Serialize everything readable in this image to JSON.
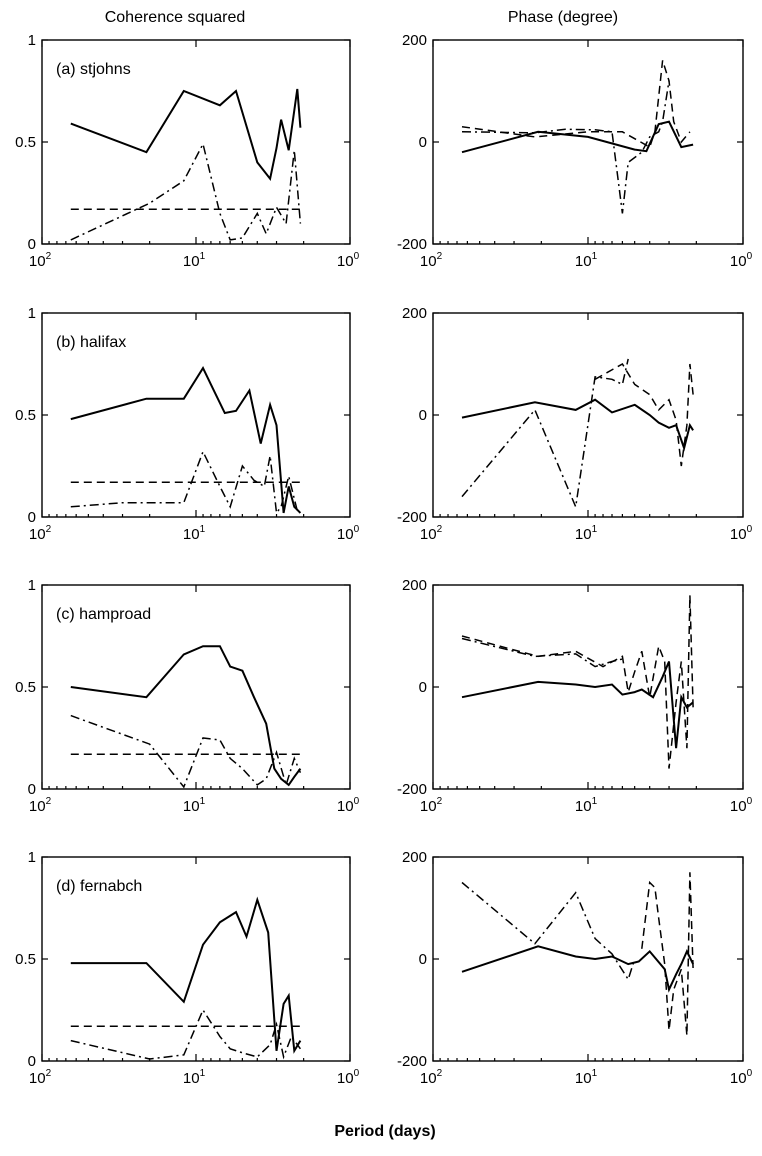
{
  "figure": {
    "left_title": "Coherence squared",
    "right_title": "Phase (degree)",
    "xlabel": "Period (days)"
  },
  "chart_data": [
    {
      "type": "line",
      "id": "a-coh",
      "panel_label": "(a) stjohns",
      "xscale": "log",
      "xlim": [
        100,
        1
      ],
      "ylim": [
        0,
        1
      ],
      "xticks": [
        {
          "base": "10",
          "exp": "2",
          "value": 100
        },
        {
          "base": "10",
          "exp": "1",
          "value": 10
        },
        {
          "base": "10",
          "exp": "0",
          "value": 1
        }
      ],
      "yticks": [
        {
          "value": 0,
          "label": "0"
        },
        {
          "value": 0.5,
          "label": "0.5"
        },
        {
          "value": 1,
          "label": "1"
        }
      ],
      "series": [
        {
          "style": "solid",
          "x": [
            65,
            21,
            12,
            7,
            5.5,
            4,
            3.3,
            3,
            2.8,
            2.5,
            2.2,
            2.1
          ],
          "y": [
            0.59,
            0.45,
            0.75,
            0.68,
            0.75,
            0.4,
            0.32,
            0.47,
            0.61,
            0.46,
            0.76,
            0.57
          ]
        },
        {
          "style": "dashed",
          "x": [
            65,
            2.1
          ],
          "y": [
            0.17,
            0.17
          ]
        },
        {
          "style": "dashdot",
          "x": [
            65,
            20,
            12,
            9,
            7,
            6,
            5,
            4,
            3.5,
            3,
            2.6,
            2.3,
            2.1
          ],
          "y": [
            0.02,
            0.2,
            0.31,
            0.49,
            0.15,
            0.02,
            0.03,
            0.15,
            0.05,
            0.18,
            0.1,
            0.46,
            0.1
          ]
        }
      ]
    },
    {
      "type": "line",
      "id": "a-phase",
      "xscale": "log",
      "xlim": [
        100,
        1
      ],
      "ylim": [
        -200,
        200
      ],
      "xticks": [
        {
          "base": "10",
          "exp": "2",
          "value": 100
        },
        {
          "base": "10",
          "exp": "1",
          "value": 10
        },
        {
          "base": "10",
          "exp": "0",
          "value": 1
        }
      ],
      "yticks": [
        {
          "value": -200,
          "label": "-200"
        },
        {
          "value": 0,
          "label": "0"
        },
        {
          "value": 200,
          "label": "200"
        }
      ],
      "series": [
        {
          "style": "solid",
          "x": [
            65,
            21,
            10,
            5,
            4.2,
            3.5,
            3,
            2.5,
            2.1
          ],
          "y": [
            -20,
            20,
            10,
            -15,
            -18,
            35,
            40,
            -10,
            -5
          ]
        },
        {
          "style": "dashed",
          "x": [
            65,
            22,
            10,
            6,
            4,
            3.7,
            3.3,
            3,
            2.8,
            2.5,
            2.2
          ],
          "y": [
            30,
            10,
            20,
            20,
            -10,
            20,
            160,
            120,
            40,
            0,
            20
          ]
        },
        {
          "style": "dashdot",
          "x": [
            65,
            22,
            14,
            9,
            7,
            6,
            5.5,
            4.5,
            4,
            3.5,
            3.3,
            3
          ],
          "y": [
            20,
            18,
            25,
            24,
            20,
            -140,
            -40,
            -20,
            10,
            20,
            40,
            120
          ]
        }
      ]
    },
    {
      "type": "line",
      "id": "b-coh",
      "panel_label": "(b) halifax",
      "xscale": "log",
      "xlim": [
        100,
        1
      ],
      "ylim": [
        0,
        1
      ],
      "xticks": [
        {
          "base": "10",
          "exp": "2",
          "value": 100
        },
        {
          "base": "10",
          "exp": "1",
          "value": 10
        },
        {
          "base": "10",
          "exp": "0",
          "value": 1
        }
      ],
      "yticks": [
        {
          "value": 0,
          "label": "0"
        },
        {
          "value": 0.5,
          "label": "0.5"
        },
        {
          "value": 1,
          "label": "1"
        }
      ],
      "series": [
        {
          "style": "solid",
          "x": [
            65,
            21,
            12,
            9,
            8,
            6.5,
            5.5,
            4.5,
            3.8,
            3.3,
            3,
            2.7,
            2.5,
            2.3,
            2.1
          ],
          "y": [
            0.48,
            0.58,
            0.58,
            0.73,
            0.65,
            0.51,
            0.52,
            0.62,
            0.36,
            0.55,
            0.45,
            0.02,
            0.15,
            0.05,
            0.02
          ]
        },
        {
          "style": "dashed",
          "x": [
            65,
            2.1
          ],
          "y": [
            0.17,
            0.17
          ]
        },
        {
          "style": "dashdot",
          "x": [
            65,
            30,
            12,
            9,
            7,
            6,
            5,
            4.2,
            3.6,
            3.3,
            3,
            2.8,
            2.5,
            2.2
          ],
          "y": [
            0.05,
            0.07,
            0.07,
            0.32,
            0.15,
            0.05,
            0.25,
            0.18,
            0.15,
            0.3,
            0.02,
            0.05,
            0.2,
            0.03
          ]
        }
      ]
    },
    {
      "type": "line",
      "id": "b-phase",
      "xscale": "log",
      "xlim": [
        100,
        1
      ],
      "ylim": [
        -200,
        200
      ],
      "xticks": [
        {
          "base": "10",
          "exp": "2",
          "value": 100
        },
        {
          "base": "10",
          "exp": "1",
          "value": 10
        },
        {
          "base": "10",
          "exp": "0",
          "value": 1
        }
      ],
      "yticks": [
        {
          "value": -200,
          "label": "-200"
        },
        {
          "value": 0,
          "label": "0"
        },
        {
          "value": 200,
          "label": "200"
        }
      ],
      "series": [
        {
          "style": "solid",
          "x": [
            65,
            22,
            12,
            9,
            7,
            5,
            4,
            3.5,
            3,
            2.7,
            2.4,
            2.2,
            2.1
          ],
          "y": [
            -5,
            25,
            10,
            30,
            5,
            20,
            0,
            -15,
            -25,
            -20,
            -65,
            -20,
            -30
          ]
        },
        {
          "style": "dashed",
          "x": [
            9,
            6,
            5,
            4,
            3.5,
            3,
            2.7,
            2.5,
            2.3,
            2.2,
            2.1
          ],
          "y": [
            70,
            100,
            60,
            40,
            10,
            30,
            -10,
            -100,
            -20,
            100,
            40
          ]
        },
        {
          "style": "dashdot",
          "x": [
            65,
            22,
            12,
            9,
            7,
            6,
            5.5
          ],
          "y": [
            -160,
            10,
            -180,
            75,
            70,
            60,
            110
          ]
        }
      ]
    },
    {
      "type": "line",
      "id": "c-coh",
      "panel_label": "(c) hamproad",
      "xscale": "log",
      "xlim": [
        100,
        1
      ],
      "ylim": [
        0,
        1
      ],
      "xticks": [
        {
          "base": "10",
          "exp": "2",
          "value": 100
        },
        {
          "base": "10",
          "exp": "1",
          "value": 10
        },
        {
          "base": "10",
          "exp": "0",
          "value": 1
        }
      ],
      "yticks": [
        {
          "value": 0,
          "label": "0"
        },
        {
          "value": 0.5,
          "label": "0.5"
        },
        {
          "value": 1,
          "label": "1"
        }
      ],
      "series": [
        {
          "style": "solid",
          "x": [
            65,
            21,
            12,
            9,
            7,
            6,
            5,
            4.2,
            3.5,
            3.1,
            2.8,
            2.5,
            2.3,
            2.1
          ],
          "y": [
            0.5,
            0.45,
            0.66,
            0.7,
            0.7,
            0.6,
            0.58,
            0.45,
            0.32,
            0.1,
            0.05,
            0.02,
            0.06,
            0.1
          ]
        },
        {
          "style": "dashed",
          "x": [
            65,
            2.1
          ],
          "y": [
            0.17,
            0.17
          ]
        },
        {
          "style": "dashdot",
          "x": [
            65,
            20,
            12,
            9,
            7,
            6,
            5,
            4,
            3.5,
            3,
            2.6,
            2.3,
            2.1
          ],
          "y": [
            0.36,
            0.22,
            0.01,
            0.25,
            0.24,
            0.15,
            0.1,
            0.02,
            0.05,
            0.18,
            0.02,
            0.15,
            0.08
          ]
        }
      ]
    },
    {
      "type": "line",
      "id": "c-phase",
      "xscale": "log",
      "xlim": [
        100,
        1
      ],
      "ylim": [
        -200,
        200
      ],
      "xticks": [
        {
          "base": "10",
          "exp": "2",
          "value": 100
        },
        {
          "base": "10",
          "exp": "1",
          "value": 10
        },
        {
          "base": "10",
          "exp": "0",
          "value": 1
        }
      ],
      "yticks": [
        {
          "value": -200,
          "label": "-200"
        },
        {
          "value": 0,
          "label": "0"
        },
        {
          "value": 200,
          "label": "200"
        }
      ],
      "series": [
        {
          "style": "solid",
          "x": [
            65,
            21,
            12,
            9,
            7,
            6,
            5,
            4.5,
            3.8,
            3.3,
            3,
            2.7,
            2.5,
            2.3,
            2.1
          ],
          "y": [
            -20,
            10,
            5,
            0,
            5,
            -15,
            -10,
            -5,
            -20,
            20,
            50,
            -120,
            -20,
            -40,
            -30
          ]
        },
        {
          "style": "dashed",
          "x": [
            65,
            21,
            12,
            8,
            6,
            5.5,
            5,
            4.5,
            4,
            3.5,
            3.2,
            3,
            2.7,
            2.5,
            2.3,
            2.2,
            2.1
          ],
          "y": [
            100,
            60,
            70,
            40,
            60,
            -10,
            30,
            70,
            -20,
            80,
            50,
            -160,
            -30,
            50,
            -120,
            180,
            -40
          ]
        },
        {
          "style": "dashdot",
          "x": [
            65,
            22,
            12,
            9,
            7,
            6
          ],
          "y": [
            95,
            60,
            65,
            40,
            50,
            55
          ]
        }
      ]
    },
    {
      "type": "line",
      "id": "d-coh",
      "panel_label": "(d) fernabch",
      "xscale": "log",
      "xlim": [
        100,
        1
      ],
      "ylim": [
        0,
        1
      ],
      "xticks": [
        {
          "base": "10",
          "exp": "2",
          "value": 100
        },
        {
          "base": "10",
          "exp": "1",
          "value": 10
        },
        {
          "base": "10",
          "exp": "0",
          "value": 1
        }
      ],
      "yticks": [
        {
          "value": 0,
          "label": "0"
        },
        {
          "value": 0.5,
          "label": "0.5"
        },
        {
          "value": 1,
          "label": "1"
        }
      ],
      "series": [
        {
          "style": "solid",
          "x": [
            65,
            21,
            12,
            9,
            7,
            5.5,
            4.7,
            4,
            3.4,
            3,
            2.7,
            2.5,
            2.3,
            2.1
          ],
          "y": [
            0.48,
            0.48,
            0.29,
            0.57,
            0.68,
            0.73,
            0.61,
            0.79,
            0.63,
            0.05,
            0.28,
            0.32,
            0.05,
            0.1
          ]
        },
        {
          "style": "dashed",
          "x": [
            65,
            2.1
          ],
          "y": [
            0.17,
            0.17
          ]
        },
        {
          "style": "dashdot",
          "x": [
            65,
            20,
            12,
            9,
            7,
            6,
            5,
            4,
            3.3,
            3,
            2.7,
            2.4,
            2.1
          ],
          "y": [
            0.1,
            0.01,
            0.03,
            0.25,
            0.12,
            0.06,
            0.04,
            0.02,
            0.08,
            0.18,
            0.02,
            0.12,
            0.06
          ]
        }
      ]
    },
    {
      "type": "line",
      "id": "d-phase",
      "xscale": "log",
      "xlim": [
        100,
        1
      ],
      "ylim": [
        -200,
        200
      ],
      "xticks": [
        {
          "base": "10",
          "exp": "2",
          "value": 100
        },
        {
          "base": "10",
          "exp": "1",
          "value": 10
        },
        {
          "base": "10",
          "exp": "0",
          "value": 1
        }
      ],
      "yticks": [
        {
          "value": -200,
          "label": "-200"
        },
        {
          "value": 0,
          "label": "0"
        },
        {
          "value": 200,
          "label": "200"
        }
      ],
      "series": [
        {
          "style": "solid",
          "x": [
            65,
            21,
            12,
            9,
            7,
            5.5,
            4.7,
            4,
            3.2,
            3,
            2.7,
            2.5,
            2.3,
            2.1
          ],
          "y": [
            -25,
            25,
            5,
            0,
            5,
            -10,
            -5,
            15,
            -20,
            -60,
            -30,
            -10,
            15,
            -10
          ]
        },
        {
          "style": "dashed",
          "x": [
            4.5,
            4,
            3.7,
            3.5,
            3.2,
            3,
            2.8,
            2.5,
            2.3,
            2.2,
            2.1
          ],
          "y": [
            20,
            150,
            140,
            80,
            -10,
            -140,
            -60,
            -20,
            -150,
            170,
            -20
          ]
        },
        {
          "style": "dashdot",
          "x": [
            65,
            22,
            12,
            9,
            7,
            5.5,
            5
          ],
          "y": [
            150,
            30,
            130,
            40,
            10,
            -40,
            0
          ]
        }
      ]
    }
  ]
}
